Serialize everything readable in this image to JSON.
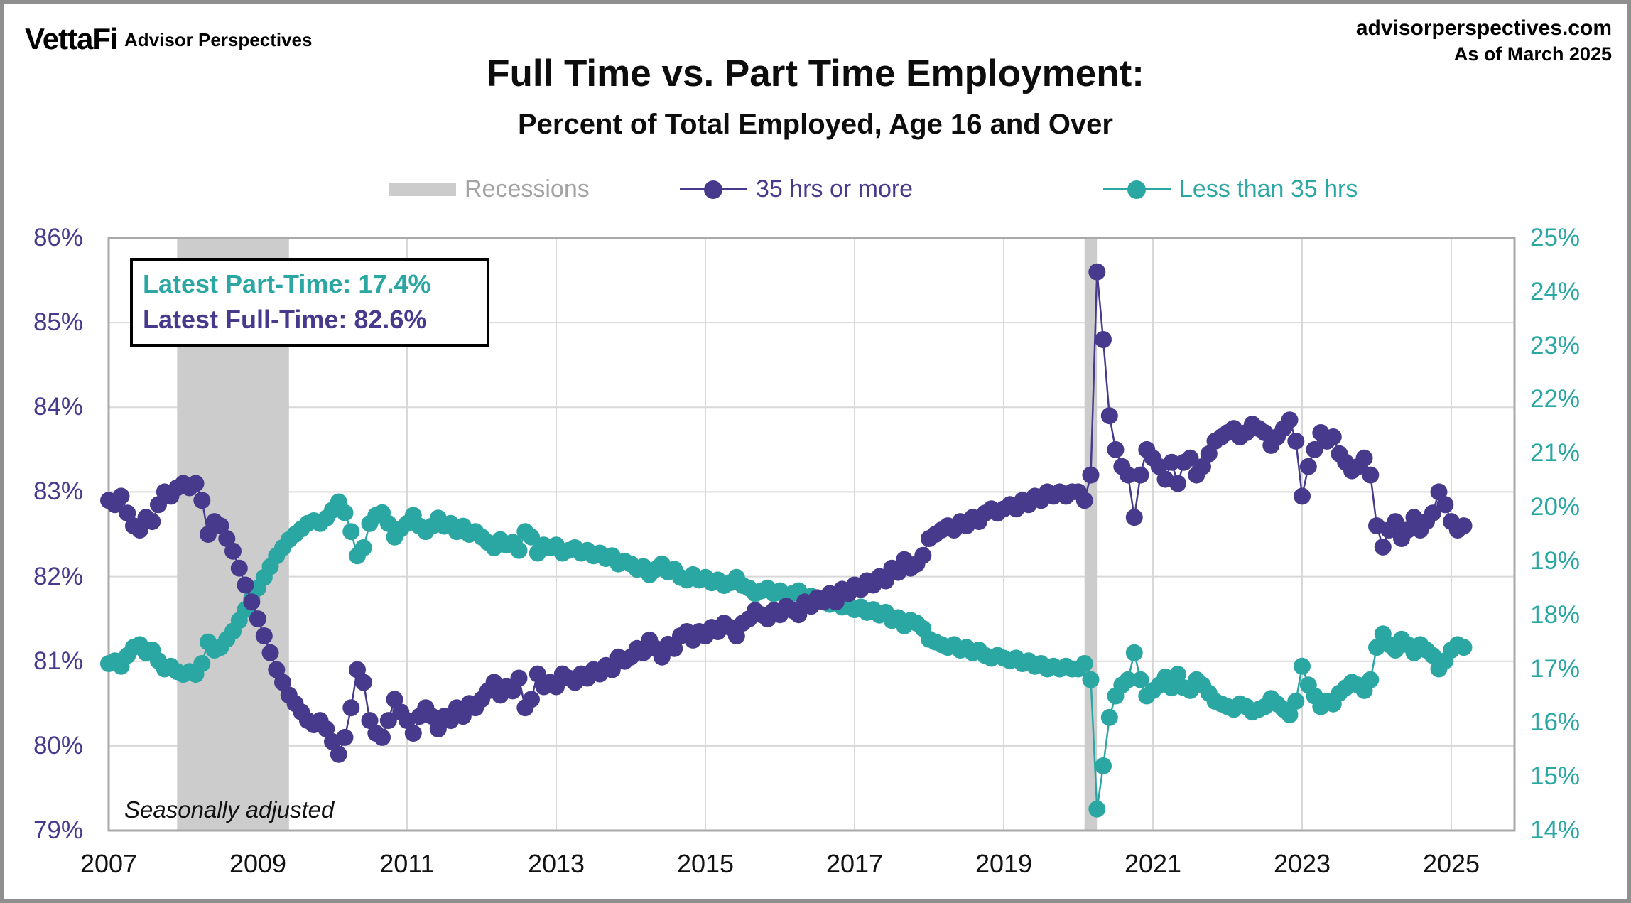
{
  "branding": {
    "logo_text": "VettaFi",
    "logo_tagline": "Advisor Perspectives",
    "site_url": "advisorperspectives.com",
    "as_of": "As of March 2025"
  },
  "title": "Full Time vs. Part Time Employment:",
  "subtitle": "Percent of Total Employed, Age 16 and Over",
  "legend": {
    "recessions_label": "Recessions",
    "fulltime_label": "35 hrs or more",
    "parttime_label": "Less than 35 hrs"
  },
  "callout": {
    "parttime_line": "Latest Part-Time: 17.4%",
    "fulltime_line": "Latest Full-Time: 82.6%"
  },
  "footnote": "Seasonally adjusted",
  "colors": {
    "fulltime": "#473a8d",
    "parttime": "#2aa7a3",
    "recession_band": "#cccccc",
    "gridline": "#d8d8d8",
    "frame": "#a9a9a9",
    "legend_gray": "#a3a3a3",
    "text_black": "#0d0d0d"
  },
  "chart_data": {
    "type": "line",
    "title": "Full Time vs. Part Time Employment: Percent of Total Employed, Age 16 and Over",
    "x_unit": "month",
    "x_start": "2007-01",
    "x_end": "2025-03",
    "x_tick_labels": [
      "2007",
      "2009",
      "2011",
      "2013",
      "2015",
      "2017",
      "2019",
      "2021",
      "2023",
      "2025"
    ],
    "left_axis": {
      "min": 79,
      "max": 86,
      "tick_labels": [
        "86%",
        "85%",
        "84%",
        "83%",
        "82%",
        "81%",
        "80%",
        "79%"
      ]
    },
    "right_axis": {
      "min": 14,
      "max": 25,
      "tick_labels": [
        "25%",
        "24%",
        "23%",
        "22%",
        "21%",
        "20%",
        "19%",
        "18%",
        "17%",
        "16%",
        "15%",
        "14%"
      ]
    },
    "grid": true,
    "legend_position": "top",
    "recessions": [
      {
        "start": 2007.917,
        "end": 2009.417
      },
      {
        "start": 2020.083,
        "end": 2020.25
      }
    ],
    "series": [
      {
        "name": "35 hrs or more",
        "axis": "left",
        "color": "#473a8d",
        "values": [
          82.9,
          82.85,
          82.95,
          82.75,
          82.6,
          82.55,
          82.7,
          82.65,
          82.85,
          83.0,
          82.95,
          83.05,
          83.1,
          83.05,
          83.1,
          82.9,
          82.5,
          82.65,
          82.6,
          82.45,
          82.3,
          82.1,
          81.9,
          81.7,
          81.5,
          81.3,
          81.1,
          80.9,
          80.75,
          80.6,
          80.5,
          80.4,
          80.3,
          80.25,
          80.3,
          80.2,
          80.05,
          79.9,
          80.1,
          80.45,
          80.9,
          80.75,
          80.3,
          80.15,
          80.1,
          80.3,
          80.55,
          80.4,
          80.3,
          80.15,
          80.35,
          80.45,
          80.35,
          80.2,
          80.35,
          80.3,
          80.45,
          80.35,
          80.5,
          80.45,
          80.55,
          80.65,
          80.75,
          80.6,
          80.7,
          80.65,
          80.8,
          80.45,
          80.55,
          80.85,
          80.7,
          80.75,
          80.7,
          80.85,
          80.8,
          80.75,
          80.85,
          80.8,
          80.9,
          80.85,
          80.95,
          80.9,
          81.05,
          81.0,
          81.05,
          81.15,
          81.1,
          81.25,
          81.15,
          81.05,
          81.2,
          81.15,
          81.3,
          81.35,
          81.25,
          81.35,
          81.3,
          81.4,
          81.35,
          81.45,
          81.4,
          81.3,
          81.45,
          81.5,
          81.6,
          81.55,
          81.5,
          81.6,
          81.55,
          81.65,
          81.6,
          81.55,
          81.7,
          81.65,
          81.75,
          81.7,
          81.8,
          81.7,
          81.85,
          81.8,
          81.9,
          81.85,
          81.95,
          81.9,
          82.0,
          81.95,
          82.1,
          82.05,
          82.2,
          82.1,
          82.15,
          82.25,
          82.45,
          82.5,
          82.55,
          82.6,
          82.55,
          82.65,
          82.6,
          82.7,
          82.65,
          82.75,
          82.8,
          82.75,
          82.8,
          82.85,
          82.8,
          82.9,
          82.85,
          82.95,
          82.9,
          83.0,
          82.95,
          83.0,
          82.95,
          83.0,
          83.0,
          82.9,
          83.2,
          85.6,
          84.8,
          83.9,
          83.5,
          83.3,
          83.2,
          82.7,
          83.2,
          83.5,
          83.4,
          83.3,
          83.15,
          83.35,
          83.1,
          83.35,
          83.4,
          83.2,
          83.3,
          83.45,
          83.6,
          83.65,
          83.7,
          83.75,
          83.65,
          83.7,
          83.8,
          83.75,
          83.7,
          83.55,
          83.65,
          83.75,
          83.85,
          83.6,
          82.95,
          83.3,
          83.5,
          83.7,
          83.6,
          83.65,
          83.45,
          83.35,
          83.25,
          83.3,
          83.4,
          83.2,
          82.6,
          82.35,
          82.55,
          82.65,
          82.45,
          82.55,
          82.7,
          82.55,
          82.65,
          82.75,
          83.0,
          82.85,
          82.65,
          82.55,
          82.6
        ]
      },
      {
        "name": "Less than 35 hrs",
        "axis": "right",
        "color": "#2aa7a3",
        "values": [
          17.1,
          17.15,
          17.05,
          17.25,
          17.4,
          17.45,
          17.3,
          17.35,
          17.15,
          17.0,
          17.05,
          16.95,
          16.9,
          16.95,
          16.9,
          17.1,
          17.5,
          17.35,
          17.4,
          17.55,
          17.7,
          17.9,
          18.1,
          18.3,
          18.5,
          18.7,
          18.9,
          19.1,
          19.25,
          19.4,
          19.5,
          19.6,
          19.7,
          19.75,
          19.7,
          19.8,
          19.95,
          20.1,
          19.9,
          19.55,
          19.1,
          19.25,
          19.7,
          19.85,
          19.9,
          19.7,
          19.45,
          19.6,
          19.7,
          19.85,
          19.65,
          19.55,
          19.65,
          19.8,
          19.65,
          19.7,
          19.55,
          19.65,
          19.5,
          19.55,
          19.45,
          19.35,
          19.25,
          19.4,
          19.3,
          19.35,
          19.2,
          19.55,
          19.45,
          19.15,
          19.3,
          19.25,
          19.3,
          19.15,
          19.2,
          19.25,
          19.15,
          19.2,
          19.1,
          19.15,
          19.05,
          19.1,
          18.95,
          19.0,
          18.95,
          18.85,
          18.9,
          18.75,
          18.85,
          18.95,
          18.8,
          18.85,
          18.7,
          18.65,
          18.75,
          18.65,
          18.7,
          18.6,
          18.65,
          18.55,
          18.6,
          18.7,
          18.55,
          18.5,
          18.4,
          18.45,
          18.5,
          18.4,
          18.45,
          18.35,
          18.4,
          18.45,
          18.3,
          18.35,
          18.25,
          18.3,
          18.2,
          18.3,
          18.15,
          18.2,
          18.1,
          18.15,
          18.05,
          18.1,
          18.0,
          18.05,
          17.9,
          17.95,
          17.8,
          17.9,
          17.85,
          17.75,
          17.55,
          17.5,
          17.45,
          17.4,
          17.45,
          17.35,
          17.4,
          17.3,
          17.35,
          17.25,
          17.2,
          17.25,
          17.2,
          17.15,
          17.2,
          17.1,
          17.15,
          17.05,
          17.1,
          17.0,
          17.05,
          17.0,
          17.05,
          17.0,
          17.0,
          17.1,
          16.8,
          14.4,
          15.2,
          16.1,
          16.5,
          16.7,
          16.8,
          17.3,
          16.8,
          16.5,
          16.6,
          16.7,
          16.85,
          16.65,
          16.9,
          16.65,
          16.6,
          16.8,
          16.7,
          16.55,
          16.4,
          16.35,
          16.3,
          16.25,
          16.35,
          16.3,
          16.2,
          16.25,
          16.3,
          16.45,
          16.35,
          16.25,
          16.15,
          16.4,
          17.05,
          16.7,
          16.5,
          16.3,
          16.4,
          16.35,
          16.55,
          16.65,
          16.75,
          16.7,
          16.6,
          16.8,
          17.4,
          17.65,
          17.45,
          17.35,
          17.55,
          17.45,
          17.3,
          17.45,
          17.35,
          17.25,
          17.0,
          17.15,
          17.35,
          17.45,
          17.4
        ]
      }
    ],
    "latest": {
      "full_time_pct": 82.6,
      "part_time_pct": 17.4,
      "as_of": "March 2025"
    }
  }
}
